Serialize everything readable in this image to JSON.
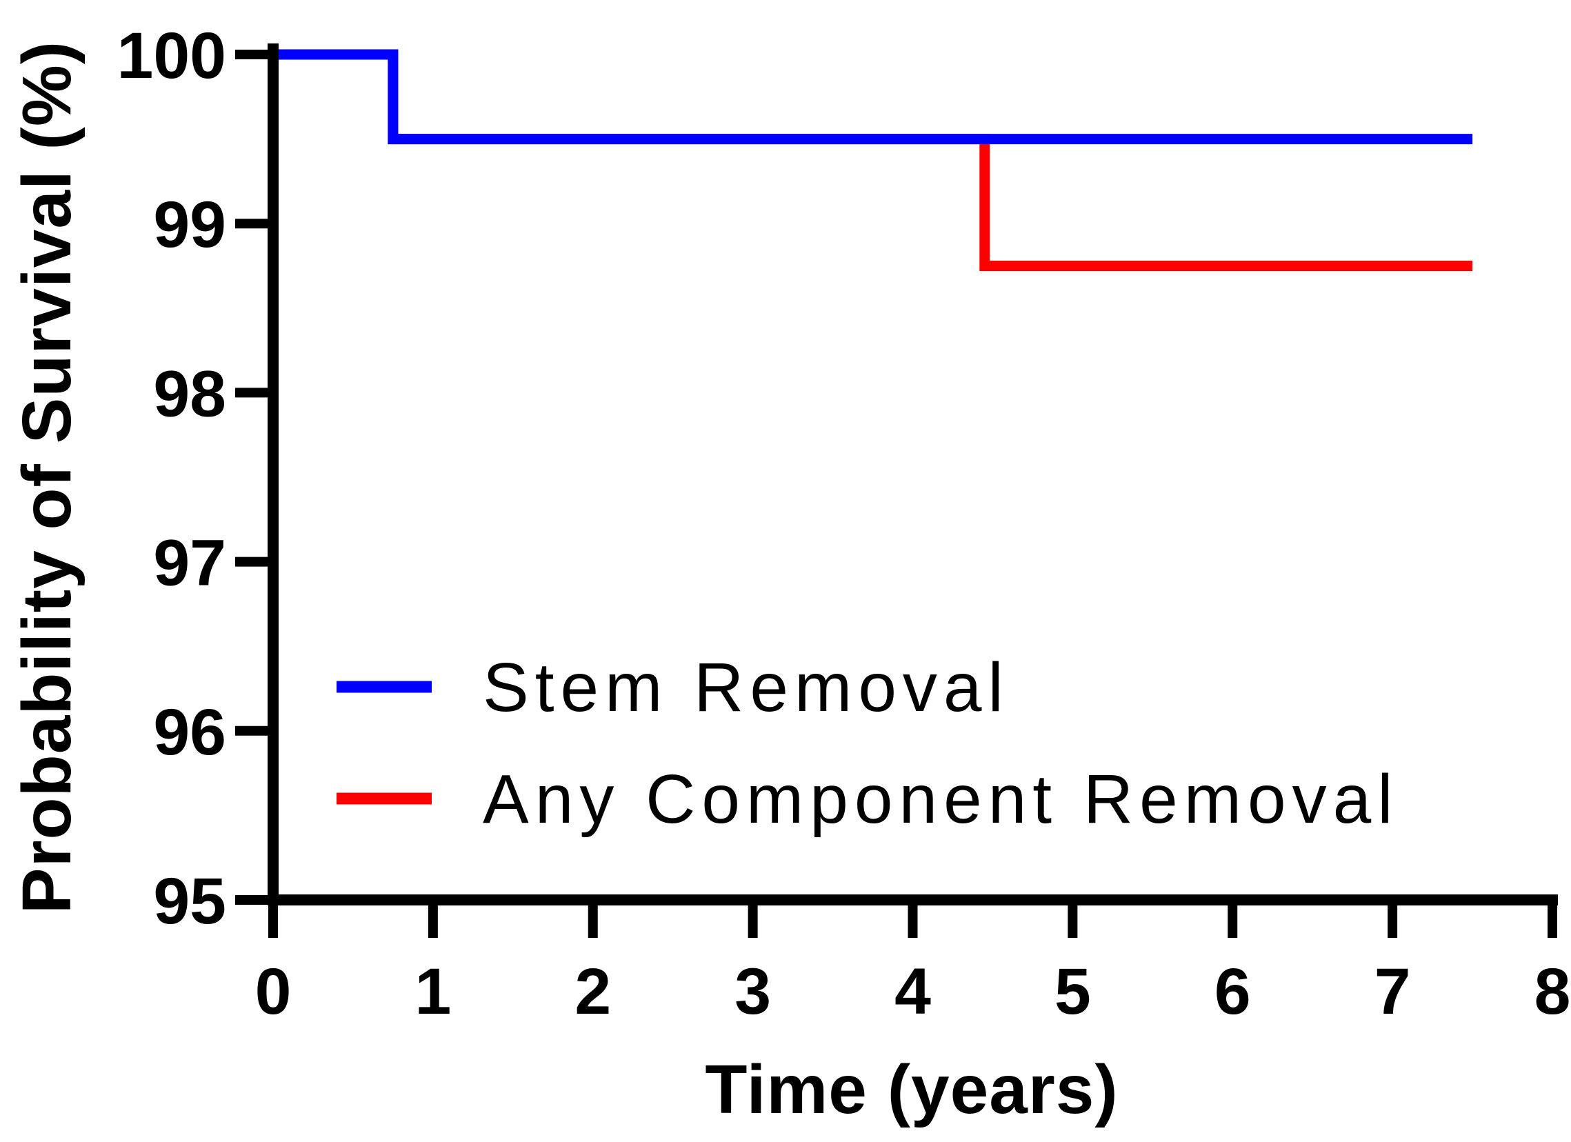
{
  "chart_data": {
    "type": "line",
    "subtype": "kaplan-meier-step-survival",
    "title": "",
    "xlabel": "Time (years)",
    "ylabel": "Probability of Survival (%)",
    "xlim": [
      0,
      8
    ],
    "ylim": [
      95,
      100
    ],
    "x_ticks": [
      0,
      1,
      2,
      3,
      4,
      5,
      6,
      7,
      8
    ],
    "y_ticks": [
      100,
      99,
      98,
      97,
      96,
      95
    ],
    "grid": false,
    "legend_position": "inside-lower-left",
    "axis_color": "#000000",
    "series": [
      {
        "name": "Any Component Removal",
        "color": "#FF0000",
        "points": [
          [
            0,
            100
          ],
          [
            0.75,
            100
          ],
          [
            0.75,
            99.5
          ],
          [
            4.45,
            99.5
          ],
          [
            4.45,
            98.75
          ],
          [
            7.5,
            98.75
          ]
        ]
      },
      {
        "name": "Stem Removal",
        "color": "#0000FF",
        "points": [
          [
            0,
            100
          ],
          [
            0.75,
            100
          ],
          [
            0.75,
            99.5
          ],
          [
            7.5,
            99.5
          ]
        ]
      }
    ]
  },
  "legend": {
    "items": [
      {
        "label": "Stem Removal",
        "color": "#0000FF"
      },
      {
        "label": "Any Component Removal",
        "color": "#FF0000"
      }
    ]
  }
}
